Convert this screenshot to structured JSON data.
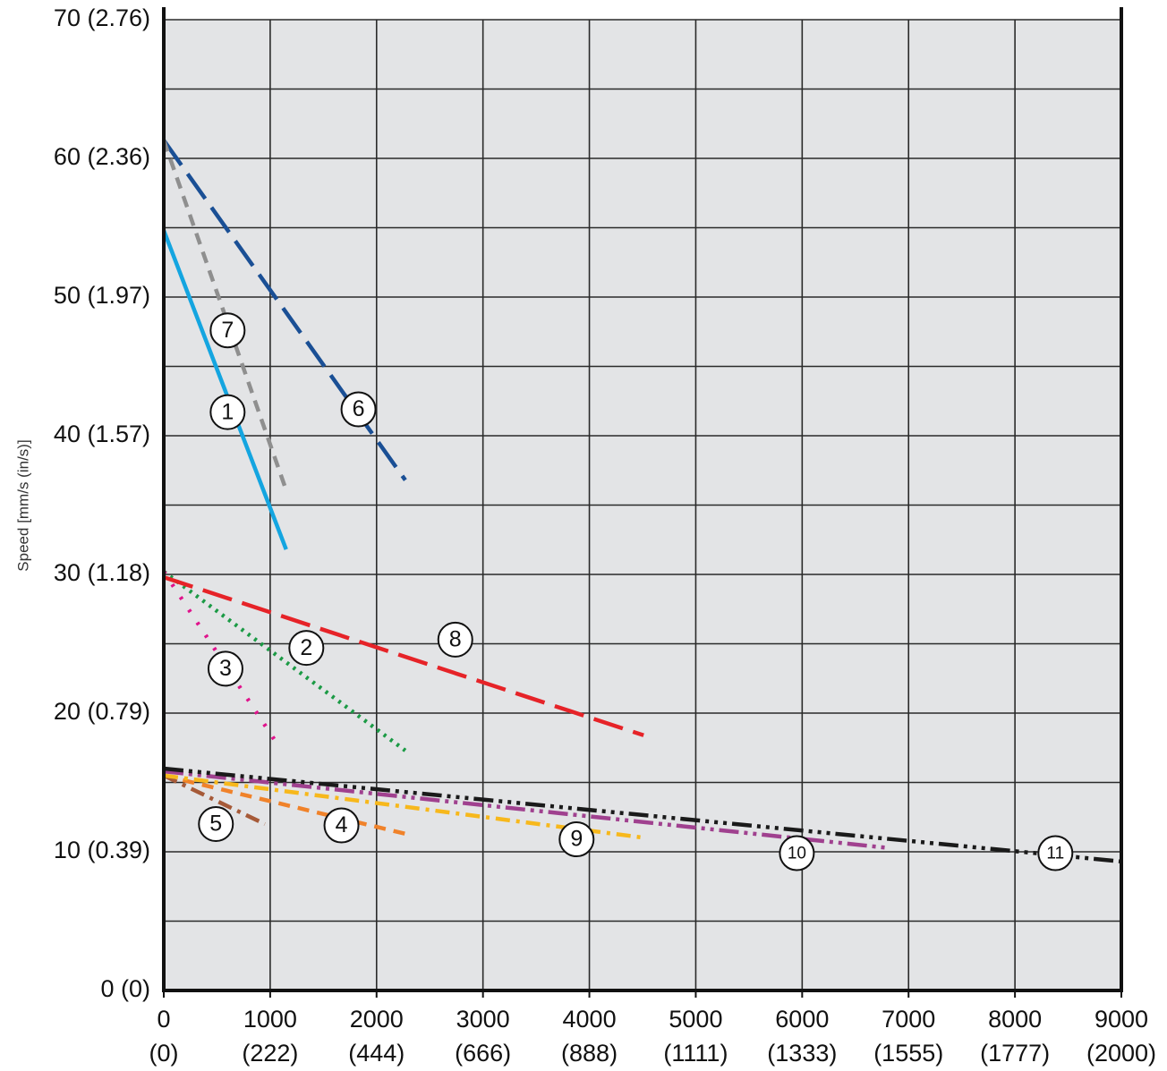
{
  "chart_data": {
    "type": "line",
    "title": "",
    "xlabel": "",
    "ylabel": "Speed [mm/s (in/s)]",
    "xlim": [
      0,
      9000
    ],
    "ylim": [
      0,
      70
    ],
    "x_ticks": [
      {
        "value": 0,
        "label": "0",
        "sub": "(0)"
      },
      {
        "value": 1000,
        "label": "1000",
        "sub": "(222)"
      },
      {
        "value": 2000,
        "label": "2000",
        "sub": "(444)"
      },
      {
        "value": 3000,
        "label": "3000",
        "sub": "(666)"
      },
      {
        "value": 4000,
        "label": "4000",
        "sub": "(888)"
      },
      {
        "value": 5000,
        "label": "5000",
        "sub": "(1111)"
      },
      {
        "value": 6000,
        "label": "6000",
        "sub": "(1333)"
      },
      {
        "value": 7000,
        "label": "7000",
        "sub": "(1555)"
      },
      {
        "value": 8000,
        "label": "8000",
        "sub": "(1777)"
      },
      {
        "value": 9000,
        "label": "9000",
        "sub": "(2000)"
      }
    ],
    "y_ticks": [
      {
        "value": 0,
        "label": "0 (0)"
      },
      {
        "value": 10,
        "label": "10 (0.39)"
      },
      {
        "value": 20,
        "label": "20 (0.79)"
      },
      {
        "value": 30,
        "label": "30 (1.18)"
      },
      {
        "value": 40,
        "label": "40 (1.57)"
      },
      {
        "value": 50,
        "label": "50 (1.97)"
      },
      {
        "value": 60,
        "label": "60 (2.36)"
      },
      {
        "value": 70,
        "label": "70 (2.76)"
      }
    ],
    "grid": true,
    "series": [
      {
        "label": "1",
        "color": "#14a5e0",
        "dash": "solid",
        "points": [
          [
            0,
            54.8
          ],
          [
            1150,
            31.8
          ]
        ],
        "label_at": [
          600,
          41.7
        ]
      },
      {
        "label": "2",
        "color": "#1b9a45",
        "dash": "dot",
        "points": [
          [
            0,
            30.2
          ],
          [
            2270,
            17.3
          ]
        ],
        "label_at": [
          1340,
          24.7
        ]
      },
      {
        "label": "3",
        "color": "#e0138c",
        "dash": "sparse-dot",
        "points": [
          [
            0,
            30.2
          ],
          [
            1090,
            17.5
          ]
        ],
        "label_at": [
          580,
          23.2
        ]
      },
      {
        "label": "4",
        "color": "#f0822a",
        "dash": "dash",
        "points": [
          [
            0,
            15.5
          ],
          [
            2270,
            11.3
          ]
        ],
        "label_at": [
          1670,
          11.9
        ]
      },
      {
        "label": "5",
        "color": "#a65a38",
        "dash": "dash-dot",
        "points": [
          [
            0,
            15.5
          ],
          [
            950,
            12.0
          ]
        ],
        "label_at": [
          490,
          12.0
        ]
      },
      {
        "label": "6",
        "color": "#1a4f95",
        "dash": "long-dash",
        "points": [
          [
            0,
            61.3
          ],
          [
            2270,
            36.8
          ]
        ],
        "label_at": [
          1830,
          41.9
        ]
      },
      {
        "label": "7",
        "color": "#8f8f8f",
        "dash": "dash",
        "points": [
          [
            0,
            61.3
          ],
          [
            1140,
            36.3
          ]
        ],
        "label_at": [
          600,
          47.6
        ]
      },
      {
        "label": "8",
        "color": "#e62328",
        "dash": "long-dash",
        "points": [
          [
            0,
            29.8
          ],
          [
            4510,
            18.4
          ]
        ],
        "label_at": [
          2740,
          25.3
        ]
      },
      {
        "label": "9",
        "color": "#f7b81c",
        "dash": "dash-dot",
        "points": [
          [
            0,
            15.5
          ],
          [
            4530,
            11.0
          ]
        ],
        "label_at": [
          3880,
          10.9
        ]
      },
      {
        "label": "10",
        "color": "#a0418f",
        "dash": "dash-dot-dot",
        "points": [
          [
            0,
            15.8
          ],
          [
            6780,
            10.3
          ]
        ],
        "label_at": [
          5950,
          9.9
        ]
      },
      {
        "label": "11",
        "color": "#1a1a1a",
        "dash": "dash-dot-dot-dot",
        "points": [
          [
            0,
            16.0
          ],
          [
            9000,
            9.3
          ]
        ],
        "label_at": [
          8380,
          9.9
        ]
      }
    ]
  }
}
